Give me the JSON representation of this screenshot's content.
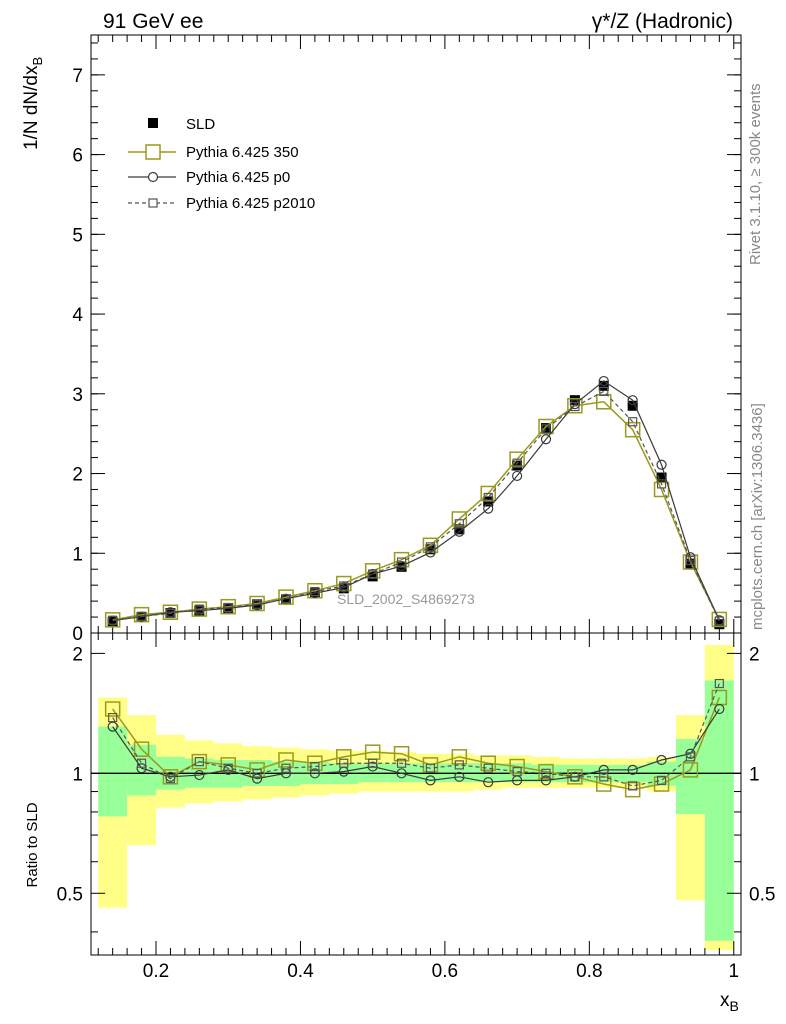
{
  "header": {
    "left_title": "91 GeV ee",
    "right_title": "γ*/Z (Hadronic)"
  },
  "side_labels": {
    "rivet": "Rivet 3.1.10, ≥ 300k events",
    "mcplots": "mcplots.cern.ch [arXiv:1306.3436]"
  },
  "analysis_label": "SLD_2002_S4869273",
  "colors": {
    "data": "#000000",
    "p350": "#9a9a1c",
    "p0": "#3a3a3a",
    "p2010": "#555555",
    "band_inner": "#99ff99",
    "band_outer": "#ffff88"
  },
  "legend": [
    "SLD",
    "Pythia 6.425 350",
    "Pythia 6.425 p0",
    "Pythia 6.425 p2010"
  ],
  "chart_data": [
    {
      "type": "scatter",
      "panel": "main",
      "ylabel": "1/N dN/dx_B",
      "ylim": [
        0,
        7.5
      ],
      "yticks": [
        0,
        1,
        2,
        3,
        4,
        5,
        6,
        7
      ],
      "x": [
        0.14,
        0.18,
        0.22,
        0.26,
        0.3,
        0.34,
        0.38,
        0.42,
        0.46,
        0.5,
        0.54,
        0.58,
        0.62,
        0.66,
        0.7,
        0.74,
        0.78,
        0.82,
        0.86,
        0.9,
        0.94,
        0.98
      ],
      "series": [
        {
          "name": "SLD",
          "marker": "filled-square",
          "values": [
            0.14,
            0.2,
            0.25,
            0.28,
            0.31,
            0.36,
            0.42,
            0.5,
            0.56,
            0.71,
            0.83,
            1.05,
            1.3,
            1.65,
            2.1,
            2.57,
            2.92,
            3.1,
            2.85,
            1.95,
            0.87,
            0.11
          ]
        },
        {
          "name": "Pythia 6.425 350",
          "marker": "open-square-line",
          "values": [
            0.165,
            0.23,
            0.26,
            0.3,
            0.33,
            0.37,
            0.45,
            0.53,
            0.62,
            0.78,
            0.92,
            1.1,
            1.43,
            1.75,
            2.18,
            2.59,
            2.85,
            2.9,
            2.55,
            1.8,
            0.89,
            0.17
          ]
        },
        {
          "name": "Pythia 6.425 p0",
          "marker": "open-circle-line",
          "values": [
            0.155,
            0.205,
            0.26,
            0.28,
            0.31,
            0.35,
            0.43,
            0.5,
            0.57,
            0.74,
            0.84,
            1.01,
            1.27,
            1.56,
            1.97,
            2.43,
            2.87,
            3.16,
            2.92,
            2.11,
            0.95,
            0.16
          ]
        },
        {
          "name": "Pythia 6.425 p2010",
          "marker": "open-square-dashed",
          "values": [
            0.16,
            0.21,
            0.245,
            0.3,
            0.32,
            0.36,
            0.43,
            0.52,
            0.59,
            0.74,
            0.89,
            1.08,
            1.37,
            1.7,
            2.13,
            2.56,
            2.84,
            3.03,
            2.65,
            1.87,
            0.91,
            0.15
          ]
        }
      ]
    },
    {
      "type": "scatter",
      "panel": "ratio",
      "xlabel": "x_B",
      "ylabel": "Ratio to SLD",
      "xlim": [
        0.11,
        1.01
      ],
      "xticks": [
        0.2,
        0.4,
        0.6,
        0.8,
        1
      ],
      "ylim": [
        0.35,
        2.25
      ],
      "yticks": [
        0.5,
        1,
        2
      ],
      "bin_edges": [
        0.12,
        0.16,
        0.2,
        0.24,
        0.28,
        0.32,
        0.36,
        0.4,
        0.44,
        0.48,
        0.52,
        0.56,
        0.6,
        0.64,
        0.68,
        0.72,
        0.76,
        0.8,
        0.84,
        0.88,
        0.92,
        0.96,
        1.0
      ],
      "band_inner": [
        [
          0.78,
          1.31
        ],
        [
          0.88,
          1.18
        ],
        [
          0.91,
          1.1
        ],
        [
          0.92,
          1.09
        ],
        [
          0.92,
          1.08
        ],
        [
          0.93,
          1.08
        ],
        [
          0.93,
          1.07
        ],
        [
          0.94,
          1.07
        ],
        [
          0.94,
          1.06
        ],
        [
          0.95,
          1.06
        ],
        [
          0.95,
          1.06
        ],
        [
          0.95,
          1.06
        ],
        [
          0.95,
          1.06
        ],
        [
          0.95,
          1.06
        ],
        [
          0.95,
          1.06
        ],
        [
          0.95,
          1.05
        ],
        [
          0.95,
          1.05
        ],
        [
          0.95,
          1.05
        ],
        [
          0.95,
          1.05
        ],
        [
          0.93,
          1.07
        ],
        [
          0.79,
          1.22
        ],
        [
          0.38,
          1.71
        ]
      ],
      "band_outer": [
        [
          0.46,
          1.55
        ],
        [
          0.66,
          1.4
        ],
        [
          0.82,
          1.25
        ],
        [
          0.84,
          1.21
        ],
        [
          0.85,
          1.19
        ],
        [
          0.86,
          1.17
        ],
        [
          0.87,
          1.16
        ],
        [
          0.88,
          1.15
        ],
        [
          0.89,
          1.14
        ],
        [
          0.9,
          1.14
        ],
        [
          0.9,
          1.13
        ],
        [
          0.9,
          1.12
        ],
        [
          0.9,
          1.12
        ],
        [
          0.91,
          1.11
        ],
        [
          0.92,
          1.11
        ],
        [
          0.92,
          1.1
        ],
        [
          0.92,
          1.09
        ],
        [
          0.92,
          1.09
        ],
        [
          0.92,
          1.09
        ],
        [
          0.9,
          1.1
        ],
        [
          0.48,
          1.4
        ],
        [
          0.36,
          2.1
        ]
      ],
      "x": [
        0.14,
        0.18,
        0.22,
        0.26,
        0.3,
        0.34,
        0.38,
        0.42,
        0.46,
        0.5,
        0.54,
        0.58,
        0.62,
        0.66,
        0.7,
        0.74,
        0.78,
        0.82,
        0.86,
        0.9,
        0.94,
        0.98
      ],
      "series": [
        {
          "name": "Pythia 6.425 350",
          "values": [
            1.45,
            1.15,
            0.98,
            1.07,
            1.05,
            1.02,
            1.08,
            1.06,
            1.1,
            1.13,
            1.12,
            1.05,
            1.1,
            1.06,
            1.04,
            1.01,
            0.98,
            0.94,
            0.91,
            0.94,
            1.02,
            1.55
          ]
        },
        {
          "name": "Pythia 6.425 p0",
          "values": [
            1.31,
            1.03,
            0.98,
            0.99,
            1.02,
            0.97,
            1.0,
            1.0,
            1.01,
            1.04,
            1.0,
            0.96,
            0.98,
            0.95,
            0.96,
            0.96,
            0.98,
            1.02,
            1.02,
            1.08,
            1.12,
            1.45
          ]
        },
        {
          "name": "Pythia 6.425 p2010",
          "values": [
            1.38,
            1.06,
            0.97,
            1.07,
            1.03,
            1.0,
            1.03,
            1.04,
            1.06,
            1.06,
            1.06,
            1.03,
            1.05,
            1.03,
            1.01,
            1.0,
            0.98,
            0.98,
            0.93,
            0.96,
            1.1,
            1.68
          ]
        }
      ]
    }
  ]
}
